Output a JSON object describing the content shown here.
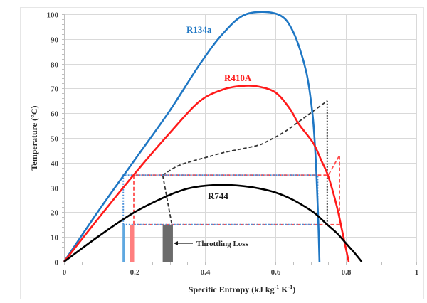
{
  "chart_data": {
    "type": "line",
    "title": "",
    "xlabel": "Specific Entropy (kJ kg-1 K-1)",
    "xlabel_parts": {
      "main": "Specific Entropy (kJ kg",
      "sup1": "-1",
      "mid": " K",
      "sup2": "-1",
      "end": ")"
    },
    "ylabel": "Temperature (°C)",
    "xlim": [
      0,
      1
    ],
    "ylim": [
      0,
      100
    ],
    "x_ticks": [
      0,
      0.2,
      0.4,
      0.6,
      0.8,
      1
    ],
    "x_tick_labels": [
      "0",
      "0.2",
      "0.4",
      "0.6",
      "0.8",
      "1"
    ],
    "y_ticks": [
      0,
      10,
      20,
      30,
      40,
      50,
      60,
      70,
      80,
      90,
      100
    ],
    "y_tick_labels": [
      "0",
      "10",
      "20",
      "30",
      "40",
      "50",
      "60",
      "70",
      "80",
      "90",
      "100"
    ],
    "x_minor_step": 0.05,
    "y_minor_step": 2,
    "grid": true,
    "colors": {
      "r134a": "#1f77c4",
      "r410a": "#ff1a1a",
      "r744": "#000000",
      "throttle_r134a": "#5fa8e0",
      "throttle_r410a": "#ff7f7f",
      "throttle_r744": "#6b6b6b",
      "grid": "#d9d9d9",
      "axis": "#bfbfbf"
    },
    "series": [
      {
        "name": "R134a",
        "label": "R134a",
        "style": "solid",
        "color": "#1f77c4",
        "points": [
          [
            0,
            0
          ],
          [
            0.1,
            21
          ],
          [
            0.2,
            41
          ],
          [
            0.3,
            61
          ],
          [
            0.384,
            79.5
          ],
          [
            0.45,
            92
          ],
          [
            0.517,
            100
          ],
          [
            0.606,
            100
          ],
          [
            0.65,
            93
          ],
          [
            0.687,
            77
          ],
          [
            0.705,
            60
          ],
          [
            0.713,
            45
          ],
          [
            0.718,
            30
          ],
          [
            0.722,
            15
          ],
          [
            0.725,
            0
          ]
        ]
      },
      {
        "name": "R410A",
        "label": "R410A",
        "style": "solid",
        "color": "#ff1a1a",
        "points": [
          [
            0,
            0
          ],
          [
            0.1,
            18
          ],
          [
            0.2,
            35.5
          ],
          [
            0.3,
            52
          ],
          [
            0.384,
            64.7
          ],
          [
            0.45,
            69.5
          ],
          [
            0.505,
            71
          ],
          [
            0.55,
            70.8
          ],
          [
            0.6,
            68.4
          ],
          [
            0.64,
            62
          ],
          [
            0.667,
            55.5
          ],
          [
            0.707,
            48
          ],
          [
            0.73,
            41
          ],
          [
            0.75,
            34.5
          ],
          [
            0.775,
            22
          ],
          [
            0.79,
            12
          ],
          [
            0.808,
            0
          ]
        ]
      },
      {
        "name": "R744",
        "label": "R744",
        "style": "solid",
        "color": "#000000",
        "points": [
          [
            0,
            0
          ],
          [
            0.1,
            10.5
          ],
          [
            0.2,
            20
          ],
          [
            0.295,
            26.7
          ],
          [
            0.35,
            29.5
          ],
          [
            0.4,
            30.7
          ],
          [
            0.45,
            31
          ],
          [
            0.5,
            30.7
          ],
          [
            0.55,
            29.7
          ],
          [
            0.6,
            28
          ],
          [
            0.65,
            25
          ],
          [
            0.7,
            20.8
          ],
          [
            0.72,
            18.6
          ],
          [
            0.747,
            15
          ],
          [
            0.775,
            11.5
          ],
          [
            0.8,
            7.5
          ],
          [
            0.825,
            3.5
          ],
          [
            0.845,
            0
          ]
        ]
      },
      {
        "name": "R744 cycle compression",
        "style": "dashed",
        "color": "#333333",
        "points": [
          [
            0.28,
            35
          ],
          [
            0.32,
            38.5
          ],
          [
            0.36,
            40.5
          ],
          [
            0.4,
            42
          ],
          [
            0.45,
            44
          ],
          [
            0.5,
            45.5
          ],
          [
            0.55,
            47
          ],
          [
            0.575,
            48.5
          ],
          [
            0.626,
            52.5
          ],
          [
            0.68,
            58
          ],
          [
            0.747,
            65
          ]
        ]
      },
      {
        "name": "R744 cycle gas cooler",
        "style": "dotted",
        "color": "#333333",
        "points": [
          [
            0.747,
            65
          ],
          [
            0.747,
            15
          ]
        ]
      },
      {
        "name": "R744 cycle expansion",
        "style": "dashed",
        "color": "#333333",
        "points": [
          [
            0.28,
            35
          ],
          [
            0.306,
            15
          ]
        ]
      },
      {
        "name": "R410A cycle",
        "style": "dashed",
        "color": "#ff4d4d",
        "points": [
          [
            0.198,
            15
          ],
          [
            0.198,
            35
          ],
          [
            0.75,
            35
          ],
          [
            0.782,
            43
          ],
          [
            0.782,
            15
          ],
          [
            0.198,
            15
          ]
        ]
      },
      {
        "name": "R134a cycle",
        "style": "dotted",
        "color": "#4a90d9",
        "points": [
          [
            0.168,
            15
          ],
          [
            0.168,
            35
          ],
          [
            0.72,
            35
          ],
          [
            0.72,
            15
          ],
          [
            0.168,
            15
          ]
        ]
      }
    ],
    "throttling_bars": [
      {
        "name": "R134a",
        "x0": 0.166,
        "x1": 0.172,
        "y0": 0,
        "y1": 15,
        "color": "#5fa8e0"
      },
      {
        "name": "R410A",
        "x0": 0.187,
        "x1": 0.199,
        "y0": 0,
        "y1": 15,
        "color": "#ff7f7f"
      },
      {
        "name": "R744",
        "x0": 0.28,
        "x1": 0.309,
        "y0": 0,
        "y1": 15,
        "color": "#6b6b6b"
      }
    ],
    "annotations": [
      {
        "text": "Throttling Loss",
        "arrow_to": [
          0.31,
          5
        ],
        "arrow_from": [
          0.365,
          5
        ]
      }
    ],
    "labels": {
      "r134a": "R134a",
      "r410a": "R410A",
      "r744": "R744",
      "throttling": "Throttling Loss"
    }
  }
}
